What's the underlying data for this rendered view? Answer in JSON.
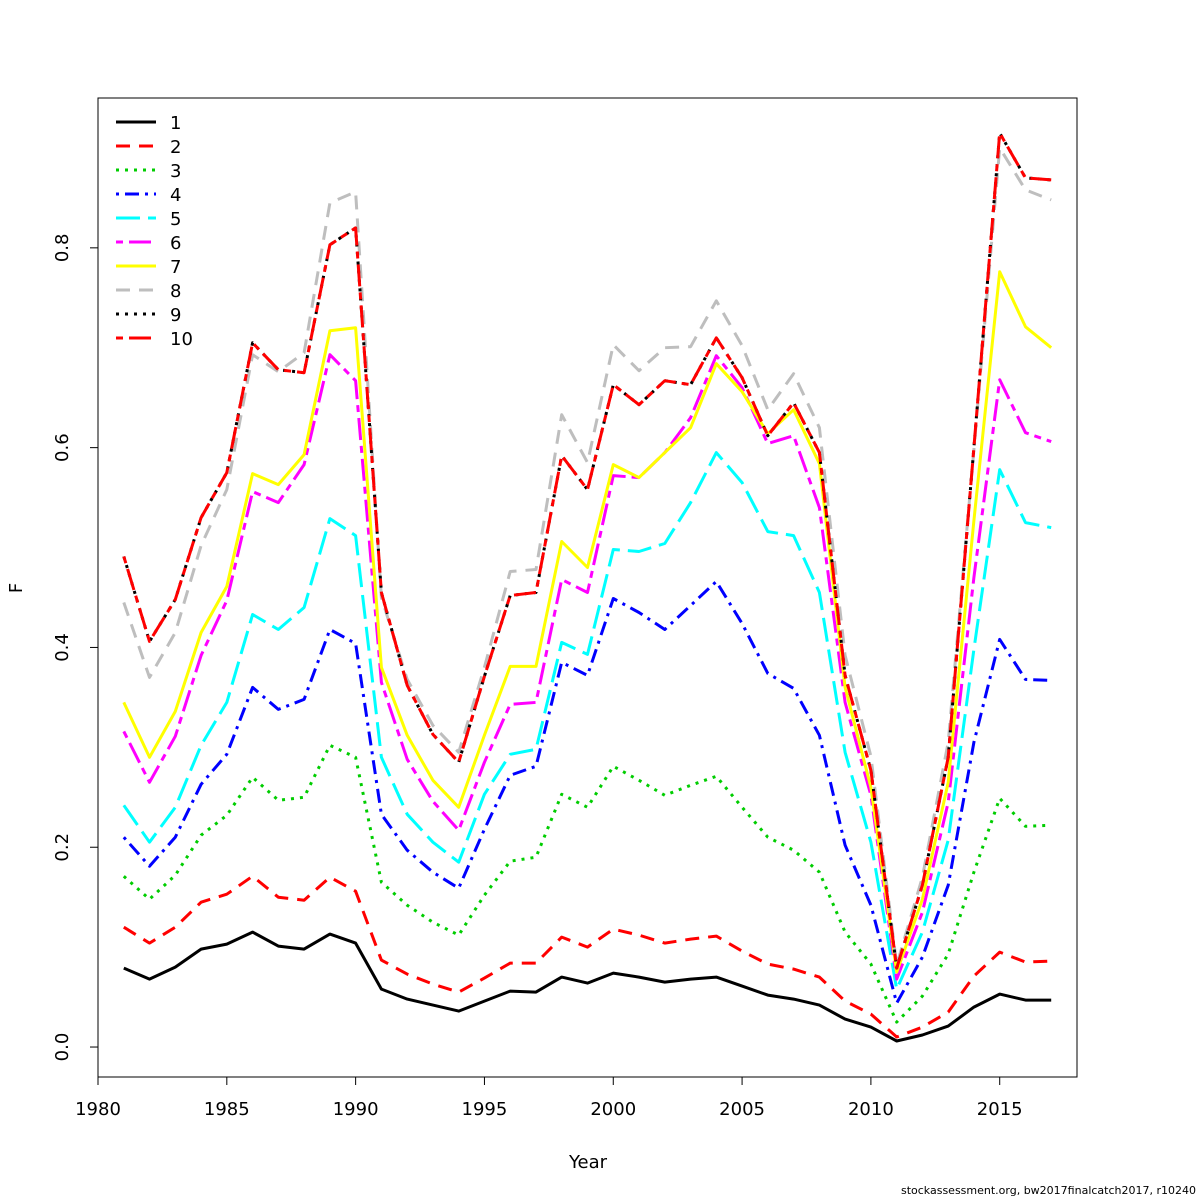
{
  "chart_data": {
    "type": "line",
    "title": "",
    "xlabel": "Year",
    "ylabel": "F",
    "xlim": [
      1980,
      2018
    ],
    "ylim": [
      -0.03,
      0.95
    ],
    "x_ticks": [
      1980,
      1985,
      1990,
      1995,
      2000,
      2005,
      2010,
      2015
    ],
    "y_ticks": [
      0.0,
      0.2,
      0.4,
      0.6,
      0.8
    ],
    "y_tick_labels": [
      "0.0",
      "0.2",
      "0.4",
      "0.6",
      "0.8"
    ],
    "grid": false,
    "legend_position": "top-left",
    "x": [
      1981,
      1982,
      1983,
      1984,
      1985,
      1986,
      1987,
      1988,
      1989,
      1990,
      1991,
      1992,
      1993,
      1994,
      1995,
      1996,
      1997,
      1998,
      1999,
      2000,
      2001,
      2002,
      2003,
      2004,
      2005,
      2006,
      2007,
      2008,
      2009,
      2010,
      2011,
      2012,
      2013,
      2014,
      2015,
      2016,
      2017
    ],
    "series": [
      {
        "name": "1",
        "color": "#000000",
        "dash": "solid",
        "values": [
          0.079,
          0.068,
          0.08,
          0.098,
          0.103,
          0.115,
          0.101,
          0.098,
          0.113,
          0.104,
          0.058,
          0.048,
          0.042,
          0.036,
          0.046,
          0.056,
          0.055,
          0.07,
          0.064,
          0.074,
          0.07,
          0.065,
          0.068,
          0.07,
          0.061,
          0.052,
          0.048,
          0.042,
          0.028,
          0.02,
          0.006,
          0.012,
          0.021,
          0.04,
          0.053,
          0.047,
          0.047
        ]
      },
      {
        "name": "2",
        "color": "#ff0000",
        "dash": "dashed",
        "values": [
          0.12,
          0.104,
          0.12,
          0.145,
          0.153,
          0.171,
          0.15,
          0.147,
          0.17,
          0.156,
          0.087,
          0.073,
          0.063,
          0.055,
          0.069,
          0.084,
          0.084,
          0.11,
          0.1,
          0.118,
          0.112,
          0.104,
          0.108,
          0.111,
          0.096,
          0.083,
          0.078,
          0.07,
          0.046,
          0.033,
          0.01,
          0.02,
          0.035,
          0.071,
          0.095,
          0.085,
          0.086
        ]
      },
      {
        "name": "3",
        "color": "#00cd00",
        "dash": "dotted",
        "values": [
          0.171,
          0.148,
          0.172,
          0.212,
          0.232,
          0.27,
          0.247,
          0.25,
          0.302,
          0.29,
          0.165,
          0.142,
          0.125,
          0.112,
          0.152,
          0.186,
          0.19,
          0.253,
          0.24,
          0.281,
          0.267,
          0.252,
          0.262,
          0.271,
          0.24,
          0.21,
          0.197,
          0.175,
          0.115,
          0.083,
          0.025,
          0.051,
          0.093,
          0.175,
          0.249,
          0.221,
          0.222
        ]
      },
      {
        "name": "4",
        "color": "#0000ff",
        "dash": "dotdash",
        "values": [
          0.21,
          0.181,
          0.21,
          0.263,
          0.293,
          0.36,
          0.338,
          0.348,
          0.418,
          0.404,
          0.233,
          0.197,
          0.175,
          0.159,
          0.218,
          0.272,
          0.281,
          0.385,
          0.372,
          0.449,
          0.435,
          0.418,
          0.442,
          0.466,
          0.424,
          0.374,
          0.359,
          0.312,
          0.202,
          0.142,
          0.044,
          0.09,
          0.162,
          0.305,
          0.408,
          0.368,
          0.367
        ]
      },
      {
        "name": "5",
        "color": "#00ffff",
        "dash": "longdash",
        "values": [
          0.242,
          0.205,
          0.24,
          0.302,
          0.345,
          0.433,
          0.418,
          0.44,
          0.529,
          0.512,
          0.29,
          0.233,
          0.205,
          0.185,
          0.253,
          0.293,
          0.298,
          0.405,
          0.393,
          0.498,
          0.496,
          0.504,
          0.545,
          0.595,
          0.565,
          0.516,
          0.512,
          0.455,
          0.295,
          0.205,
          0.058,
          0.115,
          0.207,
          0.398,
          0.578,
          0.525,
          0.52
        ]
      },
      {
        "name": "6",
        "color": "#ff00ff",
        "dash": "twodash",
        "values": [
          0.316,
          0.265,
          0.311,
          0.392,
          0.447,
          0.556,
          0.545,
          0.583,
          0.693,
          0.667,
          0.365,
          0.288,
          0.246,
          0.217,
          0.285,
          0.343,
          0.345,
          0.468,
          0.455,
          0.572,
          0.57,
          0.595,
          0.63,
          0.692,
          0.66,
          0.604,
          0.612,
          0.54,
          0.345,
          0.252,
          0.068,
          0.135,
          0.245,
          0.47,
          0.668,
          0.615,
          0.606
        ]
      },
      {
        "name": "7",
        "color": "#ffff00",
        "dash": "solid",
        "values": [
          0.345,
          0.29,
          0.336,
          0.415,
          0.461,
          0.574,
          0.563,
          0.593,
          0.717,
          0.72,
          0.38,
          0.312,
          0.267,
          0.24,
          0.312,
          0.381,
          0.381,
          0.506,
          0.48,
          0.583,
          0.57,
          0.595,
          0.62,
          0.684,
          0.656,
          0.614,
          0.638,
          0.584,
          0.36,
          0.26,
          0.075,
          0.148,
          0.265,
          0.527,
          0.776,
          0.721,
          0.7
        ]
      },
      {
        "name": "8",
        "color": "#bebebe",
        "dash": "dashed",
        "values": [
          0.445,
          0.37,
          0.415,
          0.502,
          0.558,
          0.693,
          0.676,
          0.695,
          0.845,
          0.856,
          0.45,
          0.368,
          0.322,
          0.295,
          0.38,
          0.476,
          0.478,
          0.633,
          0.585,
          0.703,
          0.677,
          0.7,
          0.701,
          0.747,
          0.702,
          0.638,
          0.674,
          0.62,
          0.392,
          0.291,
          0.082,
          0.17,
          0.305,
          0.598,
          0.9,
          0.858,
          0.848
        ]
      },
      {
        "name": "9",
        "color": "#000000",
        "dash": "dotted",
        "values": [
          0.491,
          0.406,
          0.448,
          0.53,
          0.575,
          0.705,
          0.678,
          0.675,
          0.803,
          0.82,
          0.455,
          0.362,
          0.313,
          0.285,
          0.371,
          0.452,
          0.455,
          0.592,
          0.558,
          0.663,
          0.643,
          0.667,
          0.663,
          0.71,
          0.67,
          0.612,
          0.645,
          0.595,
          0.372,
          0.277,
          0.079,
          0.162,
          0.29,
          0.6,
          0.915,
          0.87,
          0.868
        ]
      },
      {
        "name": "10",
        "color": "#ff0000",
        "dash": "twodash",
        "values": [
          0.491,
          0.406,
          0.448,
          0.53,
          0.575,
          0.705,
          0.678,
          0.675,
          0.803,
          0.82,
          0.455,
          0.362,
          0.313,
          0.285,
          0.371,
          0.452,
          0.455,
          0.592,
          0.558,
          0.663,
          0.643,
          0.667,
          0.663,
          0.71,
          0.67,
          0.612,
          0.645,
          0.595,
          0.372,
          0.277,
          0.079,
          0.162,
          0.29,
          0.6,
          0.915,
          0.87,
          0.868
        ]
      }
    ]
  },
  "footer": {
    "credit": "stockassessment.org, bw2017finalcatch2017, r10240"
  }
}
